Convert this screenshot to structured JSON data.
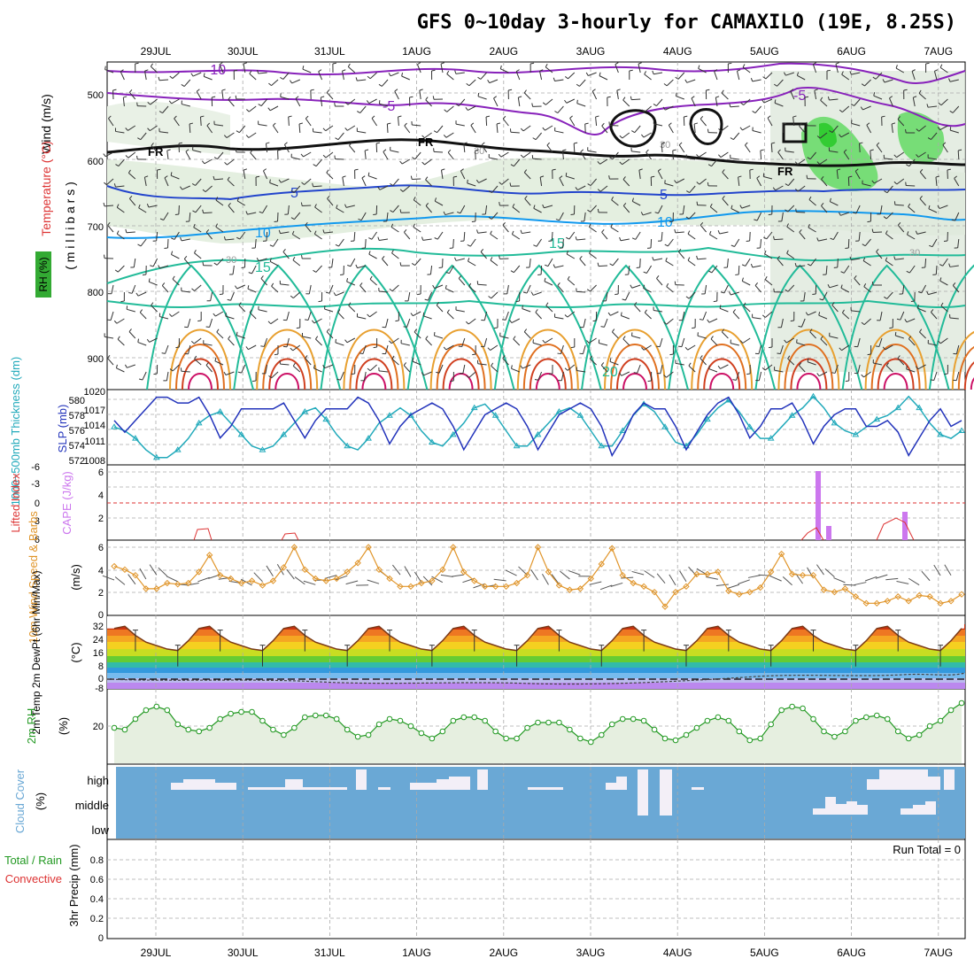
{
  "title": "GFS 0~10day 3-hourly for CAMAXILO (19E, 8.25S)",
  "dates": [
    "29JUL",
    "30JUL",
    "31JUL",
    "1AUG",
    "2AUG",
    "3AUG",
    "4AUG",
    "5AUG",
    "6AUG",
    "7AUG"
  ],
  "panels": {
    "upper": {
      "ylabel_wind": "Wind (m/s)",
      "ylabel_temp": "Temperature (°C)",
      "ylabel_rh": "RH (%)",
      "ylabel_mb": "( m i l l i b a r s )",
      "yticks": [
        "500",
        "600",
        "700",
        "800",
        "900"
      ],
      "contour_labels": [
        "-10",
        "-5",
        "-5",
        "FR",
        "FR",
        "FR",
        "-5",
        "5",
        "5",
        "10",
        "10",
        "15",
        "15",
        "20",
        "30",
        "30",
        "30",
        "-10"
      ],
      "rh_labels": [
        "30",
        "30",
        "30",
        "30"
      ]
    },
    "slp": {
      "ylabel_left": "1000~500mb Thickness (dm)",
      "ylabel_right": "SLP (mb)",
      "left_ticks": [
        "580",
        "578",
        "576",
        "574",
        "572"
      ],
      "right_ticks": [
        "1020",
        "1017",
        "1014",
        "1011",
        "1008"
      ]
    },
    "cape": {
      "ylabel_left": "Lifted Index",
      "ylabel_right": "CAPE (J/kg)",
      "left_ticks": [
        "-6",
        "-3",
        "0",
        "3",
        "6"
      ],
      "right_ticks": [
        "6",
        "4",
        "2"
      ]
    },
    "wind10": {
      "ylabel": "10m Wind Speed & Barbs",
      "unit": "(m/s)",
      "ticks": [
        "6",
        "4",
        "2",
        "0"
      ]
    },
    "temp2m": {
      "ylabel": "2m Temp 2m DewPt (6hr Min/Max)",
      "unit": "(°C)",
      "ticks": [
        "32",
        "24",
        "16",
        "8",
        "0",
        "-8"
      ]
    },
    "rh2m": {
      "ylabel": "2m RH",
      "unit": "(%)",
      "ticks": [
        "20"
      ]
    },
    "cloud": {
      "ylabel": "Cloud Cover",
      "unit": "(%)",
      "levels": [
        "high",
        "middle",
        "low"
      ]
    },
    "precip": {
      "ylabel_a": "Total / Rain",
      "ylabel_b": "Convective",
      "ylabel_c": "3hr Precip (mm)",
      "ticks": [
        "0.8",
        "0.6",
        "0.4",
        "0.2",
        "0"
      ],
      "run_total": "Run Total = 0"
    }
  },
  "colors": {
    "thickness": "#22aabb",
    "slp": "#2233bb",
    "cape": "#cc77ee",
    "lifted": "#dd3333",
    "wind": "#e0952a",
    "temp_line": "#8a4a20",
    "dewpt": "#444444",
    "rh": "#229922",
    "rh_fill": "#e6efe0",
    "cloud_bg": "#6aa8d5",
    "cloud_fill": "#f2eef6"
  },
  "chart_data": [
    {
      "type": "line",
      "title": "1000~500mb Thickness / SLP",
      "x": [
        0,
        1,
        2,
        3,
        4,
        5,
        6,
        7,
        8,
        9,
        10,
        11,
        12,
        13,
        14,
        15,
        16,
        17,
        18,
        19,
        20,
        21,
        22,
        23,
        24,
        25,
        26,
        27,
        28,
        29,
        30,
        31,
        32,
        33,
        34,
        35,
        36,
        37,
        38,
        39,
        40,
        41,
        42,
        43,
        44,
        45,
        46,
        47,
        48,
        49,
        50,
        51,
        52,
        53,
        54,
        55,
        56,
        57,
        58,
        59,
        60,
        61,
        62,
        63,
        64,
        65,
        66,
        67,
        68,
        69,
        70,
        71,
        72,
        73,
        74,
        75,
        76,
        77,
        78,
        79,
        80
      ],
      "series": [
        {
          "name": "SLP (mb)",
          "axis": "right",
          "values": [
            1015,
            1013,
            1015,
            1017,
            1019,
            1019,
            1018,
            1018,
            1019,
            1016,
            1012,
            1014,
            1017,
            1017,
            1017,
            1017,
            1018,
            1015,
            1012,
            1015,
            1017,
            1017,
            1017,
            1019,
            1018,
            1015,
            1011,
            1014,
            1016,
            1017,
            1018,
            1017,
            1014,
            1010,
            1013,
            1016,
            1017,
            1018,
            1017,
            1014,
            1010,
            1013,
            1016,
            1017,
            1018,
            1017,
            1014,
            1009,
            1012,
            1016,
            1018,
            1017,
            1017,
            1014,
            1010,
            1013,
            1016,
            1018,
            1019,
            1016,
            1012,
            1014,
            1017,
            1017,
            1018,
            1015,
            1011,
            1014,
            1016,
            1017,
            1017,
            1014,
            1014,
            1015,
            1013,
            1009,
            1012,
            1015,
            1017,
            1014,
            1015
          ]
        },
        {
          "name": "Thickness (dm)",
          "axis": "left",
          "values": [
            576.5,
            576,
            575,
            573.5,
            572.5,
            572.5,
            573.5,
            575,
            577,
            578,
            578.5,
            577,
            575.5,
            574,
            573.5,
            574,
            575.5,
            577,
            578.5,
            579,
            577.5,
            575.5,
            574,
            573.5,
            575,
            577,
            578,
            579,
            578,
            576,
            574.5,
            574,
            575.5,
            577,
            579,
            579.5,
            578,
            576,
            574,
            574,
            575.5,
            577,
            578.5,
            579,
            578,
            576,
            574,
            574,
            576,
            578,
            579.5,
            578.5,
            576.5,
            574.5,
            574,
            575.5,
            577.5,
            579,
            580,
            578.5,
            576.5,
            575,
            575,
            576.5,
            578,
            579,
            580.5,
            579,
            577,
            576,
            575.5,
            576.5,
            577.5,
            578,
            579,
            580.5,
            579,
            577,
            575.5,
            575,
            576
          ]
        }
      ]
    },
    {
      "type": "line",
      "title": "10m Wind Speed",
      "x": [
        0,
        1,
        2,
        3,
        4,
        5,
        6,
        7,
        8,
        9,
        10,
        11,
        12,
        13,
        14,
        15,
        16,
        17,
        18,
        19,
        20,
        21,
        22,
        23,
        24,
        25,
        26,
        27,
        28,
        29,
        30,
        31,
        32,
        33,
        34,
        35,
        36,
        37,
        38,
        39,
        40,
        41,
        42,
        43,
        44,
        45,
        46,
        47,
        48,
        49,
        50,
        51,
        52,
        53,
        54,
        55,
        56,
        57,
        58,
        59,
        60,
        61,
        62,
        63,
        64,
        65,
        66,
        67,
        68,
        69,
        70,
        71,
        72,
        73,
        74,
        75,
        76,
        77,
        78,
        79,
        80
      ],
      "series": [
        {
          "name": "10m Wind (m/s)",
          "values": [
            4.3,
            4,
            3.5,
            2.3,
            2.3,
            2.8,
            2.7,
            2.8,
            3.8,
            5.3,
            3.5,
            3.2,
            2.8,
            3,
            2.6,
            3,
            4.2,
            6,
            4,
            3.2,
            3,
            3.2,
            3.8,
            4.6,
            6,
            4,
            3.2,
            2.5,
            2.5,
            2.8,
            3,
            4,
            6,
            3.8,
            3,
            2.5,
            2.5,
            2.5,
            2.8,
            3.5,
            6,
            3.8,
            2.6,
            2.2,
            2.3,
            3.2,
            4.5,
            5.9,
            3.5,
            2.8,
            2.5,
            2,
            0.7,
            2,
            2.5,
            3.6,
            3.6,
            3.8,
            2.1,
            1.8,
            2.0,
            2.4,
            3.8,
            5.4,
            3.6,
            3.5,
            3.5,
            2.2,
            2.0,
            2.3,
            1.6,
            1,
            1,
            1.2,
            1.6,
            1.2,
            1.7,
            1.6,
            1,
            1.2,
            1.8
          ]
        }
      ]
    },
    {
      "type": "line",
      "title": "2m RH",
      "x": [
        0,
        1,
        2,
        3,
        4,
        5,
        6,
        7,
        8,
        9,
        10,
        11,
        12,
        13,
        14,
        15,
        16,
        17,
        18,
        19,
        20,
        21,
        22,
        23,
        24,
        25,
        26,
        27,
        28,
        29,
        30,
        31,
        32,
        33,
        34,
        35,
        36,
        37,
        38,
        39,
        40,
        41,
        42,
        43,
        44,
        45,
        46,
        47,
        48,
        49,
        50,
        51,
        52,
        53,
        54,
        55,
        56,
        57,
        58,
        59,
        60,
        61,
        62,
        63,
        64,
        65,
        66,
        67,
        68,
        69,
        70,
        71,
        72,
        73,
        74,
        75,
        76,
        77,
        78,
        79,
        80
      ],
      "series": [
        {
          "name": "2m RH (%)",
          "values": [
            20,
            19,
            25,
            30,
            32,
            30,
            22,
            19,
            18,
            20,
            25,
            28,
            29,
            29,
            24,
            19,
            16,
            20,
            26,
            27,
            27,
            25,
            19,
            15,
            16,
            22,
            25,
            24,
            21,
            17,
            14,
            18,
            24,
            26,
            26,
            24,
            18,
            14,
            14,
            20,
            23,
            23,
            23,
            19,
            14,
            12,
            16,
            22,
            25,
            25,
            24,
            19,
            14,
            13,
            16,
            20,
            24,
            26,
            24,
            18,
            13,
            14,
            22,
            30,
            32,
            31,
            25,
            18,
            15,
            18,
            24,
            26,
            27,
            25,
            18,
            14,
            16,
            21,
            24,
            30,
            34
          ]
        }
      ]
    }
  ]
}
